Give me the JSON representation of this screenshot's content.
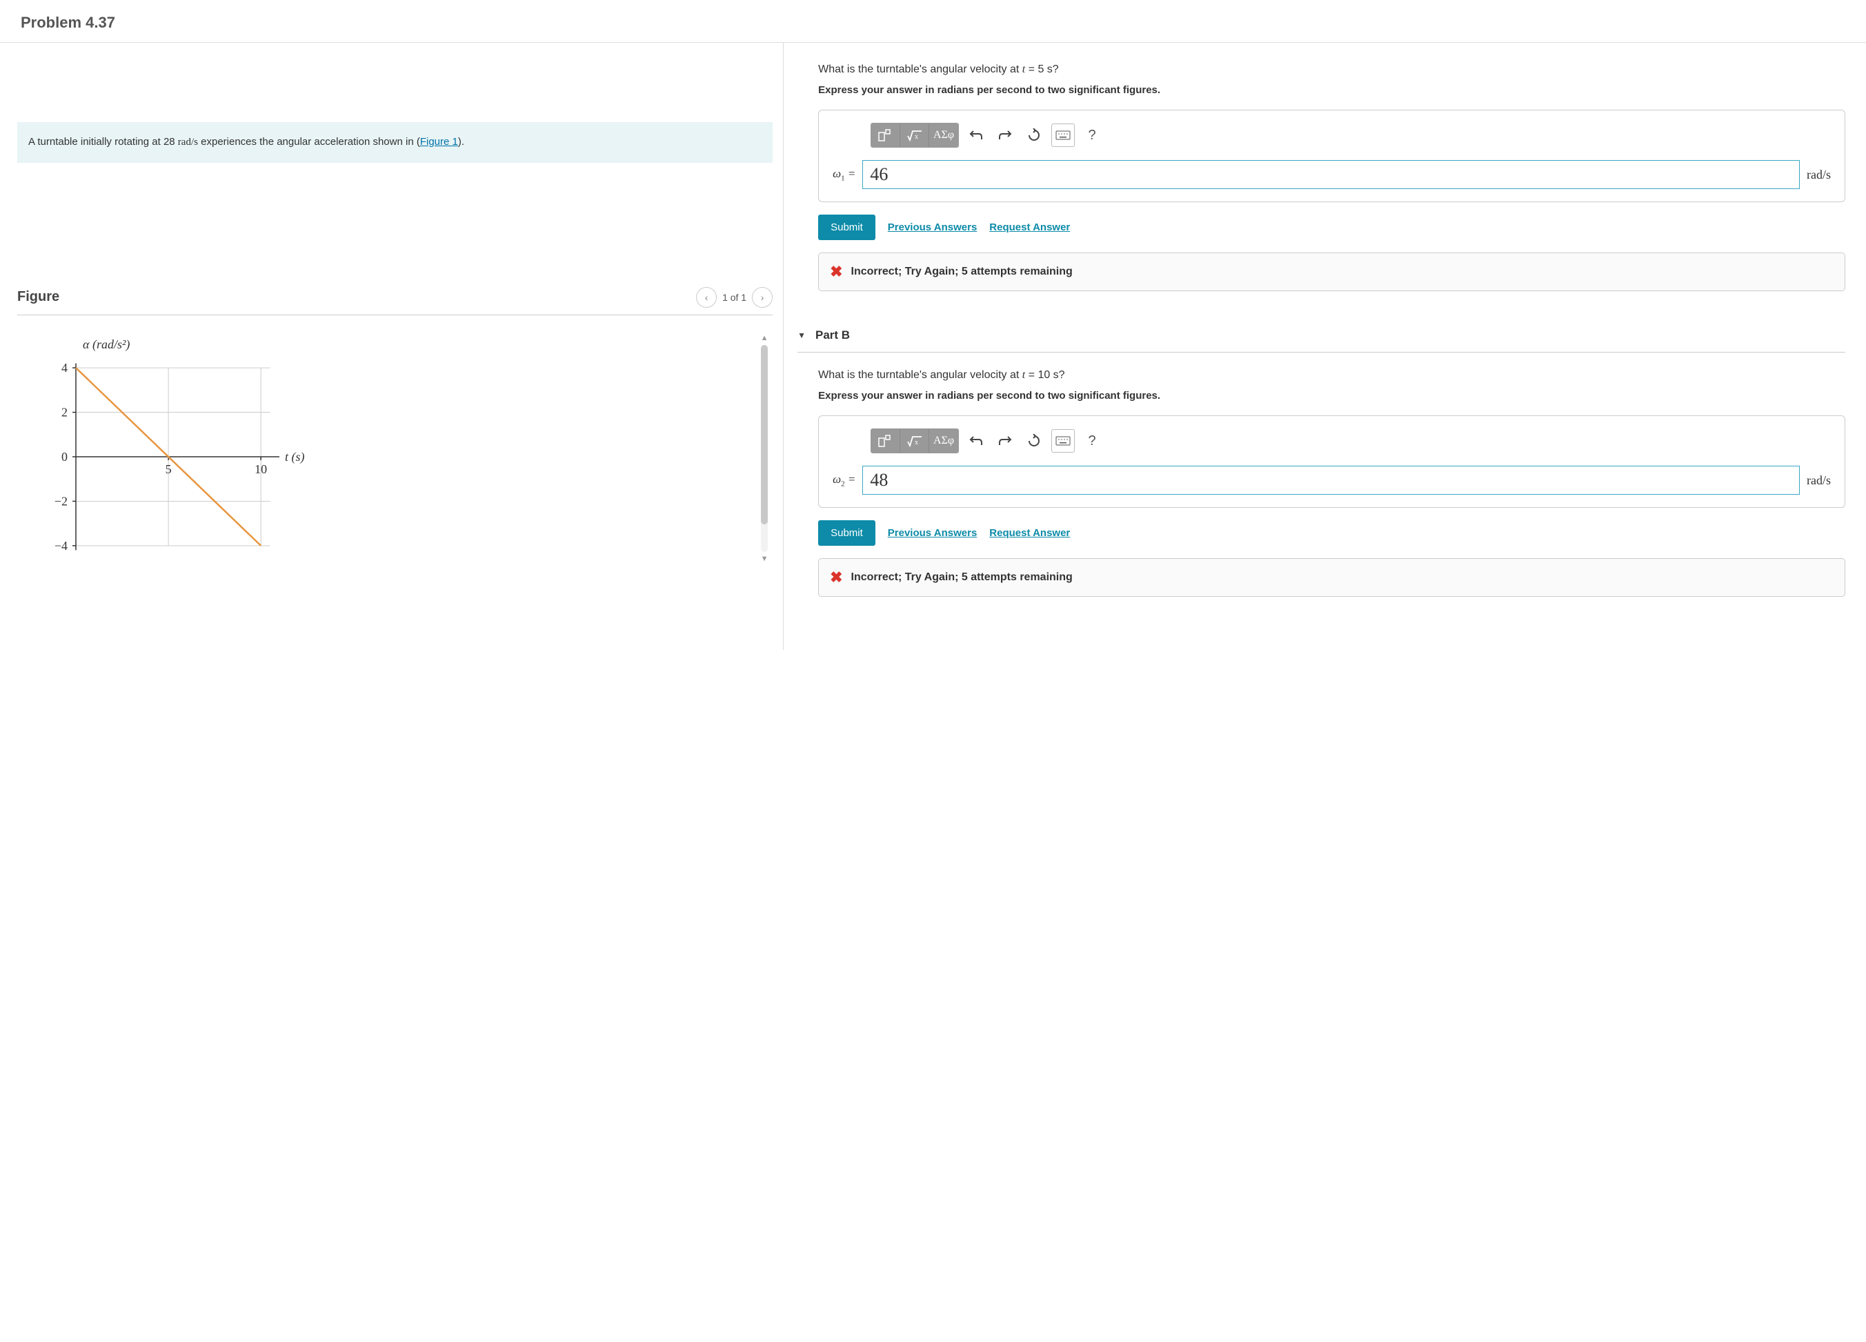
{
  "header": {
    "title": "Problem 4.37"
  },
  "intro": {
    "text_before": "A turntable initially rotating at 28 ",
    "rate_value": "rad/s",
    "text_mid": " experiences the angular acceleration shown in (",
    "link_text": "Figure 1",
    "text_after": ")."
  },
  "figure": {
    "heading": "Figure",
    "nav_label": "1 of 1",
    "chart": {
      "type": "line",
      "y_label": "α (rad/s²)",
      "x_label": "t (s)",
      "x_ticks": [
        0,
        5,
        10
      ],
      "y_ticks": [
        -4,
        -2,
        0,
        2,
        4
      ],
      "xlim": [
        0,
        11
      ],
      "ylim": [
        -4.5,
        4.5
      ],
      "line": {
        "points": [
          [
            0,
            4
          ],
          [
            10,
            -4
          ]
        ],
        "color": "#e8953e",
        "width": 2.5
      },
      "grid_color": "#cccccc",
      "axis_color": "#333333",
      "background": "#ffffff",
      "tick_fontsize": 18,
      "label_fontsize": 18
    }
  },
  "partA": {
    "question_prefix": "What is the turntable's angular velocity at ",
    "question_var": "t",
    "question_eq": " = 5 s?",
    "instruction": "Express your answer in radians per second to two significant figures.",
    "toolbar": {
      "greek": "ΑΣφ",
      "help": "?"
    },
    "var_symbol": "ω",
    "var_sub": "1",
    "value": "46",
    "unit": "rad/s",
    "submit": "Submit",
    "prev": "Previous Answers",
    "request": "Request Answer",
    "feedback": "Incorrect; Try Again; 5 attempts remaining"
  },
  "partB": {
    "header": "Part B",
    "question_prefix": "What is the turntable's angular velocity at ",
    "question_var": "t",
    "question_eq": " = 10 s?",
    "instruction": "Express your answer in radians per second to two significant figures.",
    "toolbar": {
      "greek": "ΑΣφ",
      "help": "?"
    },
    "var_symbol": "ω",
    "var_sub": "2",
    "value": "48",
    "unit": "rad/s",
    "submit": "Submit",
    "prev": "Previous Answers",
    "request": "Request Answer",
    "feedback": "Incorrect; Try Again; 5 attempts remaining"
  }
}
